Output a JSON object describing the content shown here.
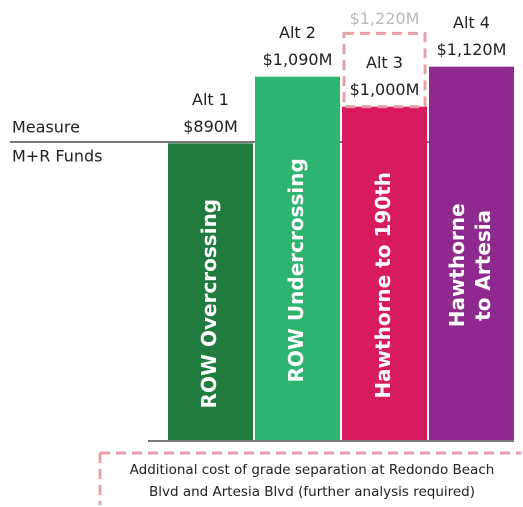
{
  "chart_data": {
    "type": "bar",
    "categories": [
      "Alt 1",
      "Alt 2",
      "Alt 3",
      "Alt 4"
    ],
    "values": [
      890,
      1090,
      1000,
      1120
    ],
    "value_labels": [
      "$890M",
      "$1,090M",
      "$1,000M",
      "$1,120M"
    ],
    "colors": [
      "#217a3e",
      "#2db56f",
      "#d81b5e",
      "#8e2a8e"
    ],
    "bar_labels": [
      [
        "ROW Overcrossing"
      ],
      [
        "ROW Undercrossing"
      ],
      [
        "Hawthorne to 190th"
      ],
      [
        "Hawthorne",
        "to Artesia"
      ]
    ],
    "additional_values": [
      null,
      null,
      1220,
      null
    ],
    "additional_value_labels": [
      null,
      null,
      "$1,220M",
      null
    ],
    "ylim": [
      0,
      1320
    ],
    "left_labels": [
      "Measure",
      "M+R Funds"
    ],
    "note": [
      "Additional cost of grade separation at Redondo Beach",
      "Blvd and Artesia Blvd (further analysis required)"
    ]
  }
}
